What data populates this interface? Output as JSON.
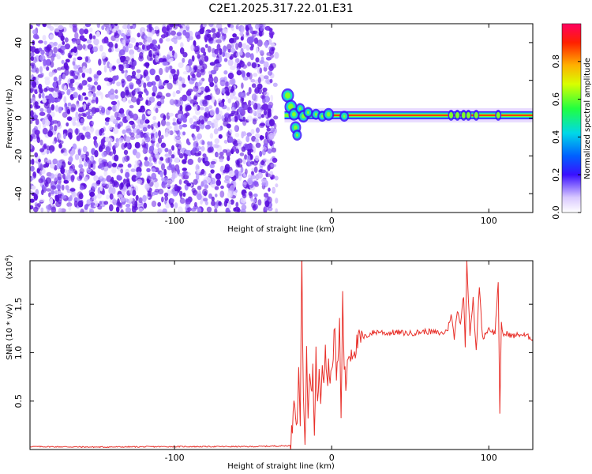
{
  "title": "C2E1.2025.317.22.01.E31",
  "colorbar": {
    "label": "Normalized spectral amplitude",
    "ticks": [
      "0.0",
      "0.2",
      "0.4",
      "0.6",
      "0.8"
    ],
    "tick_values": [
      0.0,
      0.2,
      0.4,
      0.6,
      0.8
    ],
    "range": [
      0,
      1
    ]
  },
  "colors": {
    "snr_line": "#e8302a",
    "scatter": "#7a2be8"
  },
  "chart_data": [
    {
      "type": "heatmap",
      "name": "spectrogram",
      "xlabel": "Height of straight line (km)",
      "ylabel": "Frequency (Hz)",
      "xlim": [
        -192,
        128
      ],
      "ylim": [
        -50,
        50
      ],
      "x_ticks": [
        -100,
        0,
        100
      ],
      "x_tick_labels": [
        "-100",
        "0",
        "100"
      ],
      "y_ticks": [
        -40,
        -20,
        0,
        20,
        40
      ],
      "y_tick_labels": [
        "-40",
        "-20",
        "0",
        "20",
        "40"
      ],
      "noise_region": {
        "x_from": -192,
        "x_to": -35,
        "f_from": -50,
        "f_to": 50
      },
      "signal_band": {
        "x_from": -30,
        "x_to": 128,
        "frequency": 1.5,
        "peak_amplitude": 0.95
      }
    },
    {
      "type": "line",
      "name": "snr",
      "xlabel": "Height of straight line (km)",
      "ylabel": "SNR (10 * v/v)",
      "exponent_label": "(x10",
      "exponent_sup": "4",
      "xlim": [
        -192,
        128
      ],
      "ylim": [
        0,
        1.95
      ],
      "x_ticks": [
        -100,
        0,
        100
      ],
      "x_tick_labels": [
        "-100",
        "0",
        "100"
      ],
      "y_ticks": [
        0.5,
        1.0,
        1.5
      ],
      "y_tick_labels": [
        "0.5",
        "1.0",
        "1.5"
      ],
      "series": [
        {
          "name": "SNR",
          "x": [
            -192,
            -150,
            -100,
            -50,
            -26,
            -25,
            -24,
            -23,
            -22,
            -21,
            -20,
            -19,
            -18,
            -17,
            -16,
            -15,
            -14,
            -13,
            -12,
            -11,
            -10,
            -9,
            -8,
            -7,
            -6,
            -5,
            -4,
            -3,
            -2,
            -1,
            0,
            1,
            2,
            3,
            4,
            5,
            6,
            7,
            8,
            9,
            10,
            12,
            15,
            17,
            20,
            25,
            30,
            35,
            40,
            50,
            60,
            70,
            72,
            74,
            76,
            78,
            80,
            82,
            84,
            85,
            86,
            88,
            90,
            92,
            94,
            96,
            100,
            104,
            106,
            107,
            108,
            109,
            110,
            112,
            115,
            120,
            128
          ],
          "y": [
            0.03,
            0.025,
            0.03,
            0.03,
            0.04,
            0.25,
            0.6,
            0.45,
            0.2,
            0.9,
            0.3,
            1.95,
            0.5,
            0.1,
            0.95,
            0.3,
            0.8,
            0.5,
            0.85,
            0.2,
            1.0,
            0.4,
            0.9,
            0.55,
            0.95,
            0.75,
            1.1,
            0.7,
            0.85,
            0.8,
            0.8,
            0.9,
            1.35,
            0.75,
            0.9,
            1.3,
            0.35,
            1.55,
            0.9,
            0.6,
            0.95,
            1.0,
            1.05,
            1.12,
            1.15,
            1.2,
            1.22,
            1.2,
            1.21,
            1.2,
            1.22,
            1.2,
            1.21,
            1.25,
            1.4,
            1.15,
            1.45,
            1.3,
            1.6,
            1.05,
            1.95,
            1.2,
            1.55,
            1.0,
            1.7,
            1.15,
            1.25,
            1.2,
            1.75,
            0.35,
            1.3,
            1.2,
            1.18,
            1.2,
            1.17,
            1.19,
            1.15
          ]
        }
      ]
    }
  ]
}
